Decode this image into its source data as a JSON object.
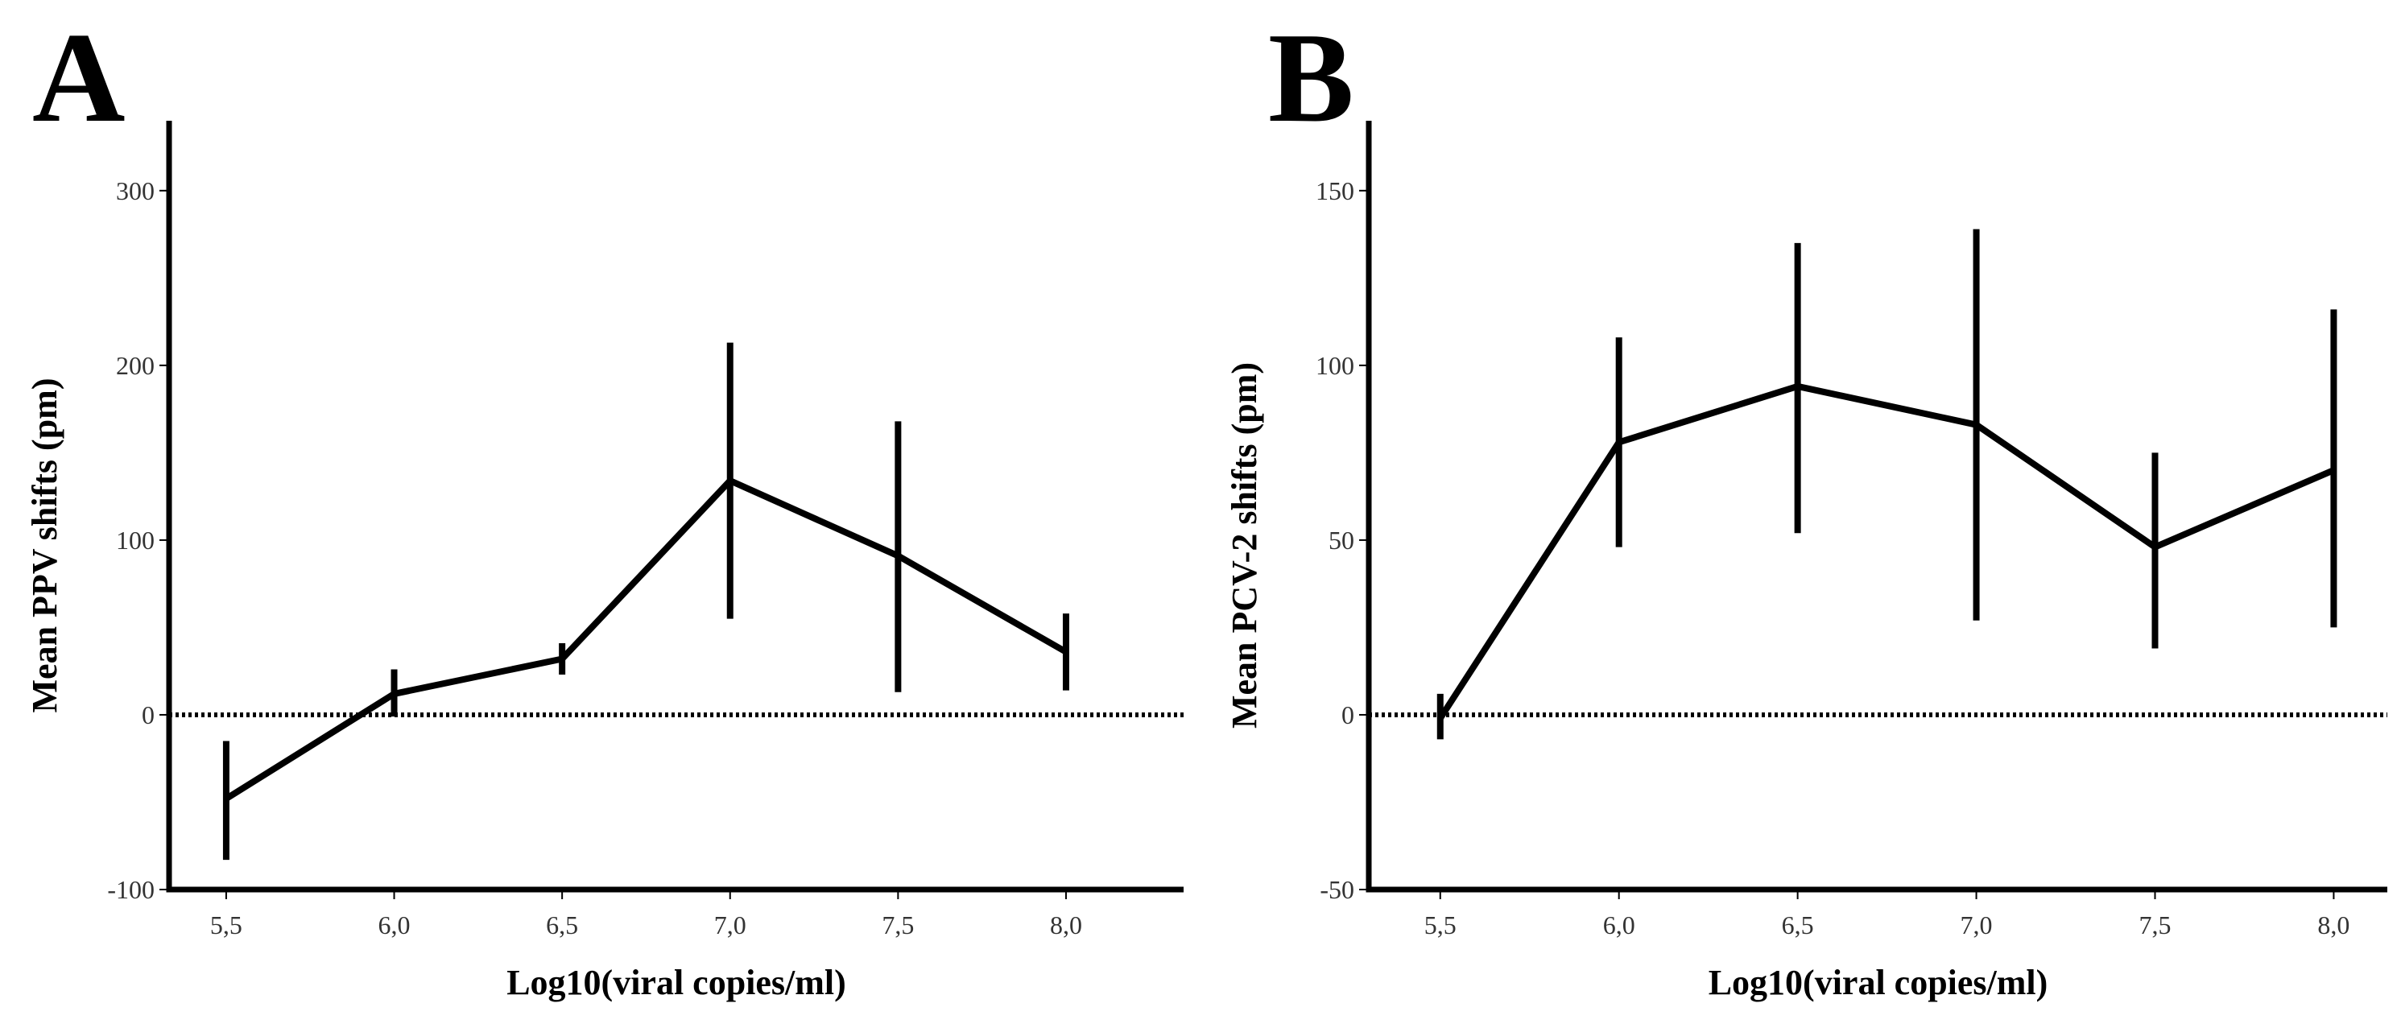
{
  "chart_data": [
    {
      "type": "line",
      "panel_label": "A",
      "title": "",
      "xlabel": "Log10(viral copies/ml)",
      "ylabel": "Mean PPV shifts (pm)",
      "x": [
        5.5,
        6.0,
        6.5,
        7.0,
        7.5,
        8.0
      ],
      "x_tick_labels": [
        "5,5",
        "6,0",
        "6,5",
        "7,0",
        "7,5",
        "8,0"
      ],
      "y_ticks": [
        -100,
        0,
        100,
        200,
        300
      ],
      "y_tick_labels": [
        "-100",
        "0",
        "100",
        "200",
        "300"
      ],
      "xlim": [
        5.33,
        8.35
      ],
      "ylim": [
        -100,
        340
      ],
      "reference_line_y": 0,
      "series": [
        {
          "name": "Mean PPV shifts",
          "values": [
            -48,
            12,
            32,
            134,
            91,
            36
          ],
          "error_low": [
            -83,
            -1,
            23,
            55,
            13,
            14
          ],
          "error_high": [
            -15,
            26,
            41,
            213,
            168,
            58
          ]
        }
      ]
    },
    {
      "type": "line",
      "panel_label": "B",
      "title": "",
      "xlabel": "Log10(viral copies/ml)",
      "ylabel": "Mean PCV-2 shifts (pm)",
      "x": [
        5.5,
        6.0,
        6.5,
        7.0,
        7.5,
        8.0
      ],
      "x_tick_labels": [
        "5,5",
        "6,0",
        "6,5",
        "7,0",
        "7,5",
        "8,0"
      ],
      "y_ticks": [
        -50,
        0,
        50,
        100,
        150
      ],
      "y_tick_labels": [
        "-50",
        "0",
        "50",
        "100",
        "150"
      ],
      "xlim": [
        5.3,
        8.15
      ],
      "ylim": [
        -50,
        170
      ],
      "reference_line_y": 0,
      "series": [
        {
          "name": "Mean PCV-2 shifts",
          "values": [
            -1,
            78,
            94,
            83,
            48,
            70
          ],
          "error_low": [
            -7,
            48,
            52,
            27,
            19,
            25
          ],
          "error_high": [
            6,
            108,
            135,
            139,
            75,
            116
          ]
        }
      ]
    }
  ]
}
